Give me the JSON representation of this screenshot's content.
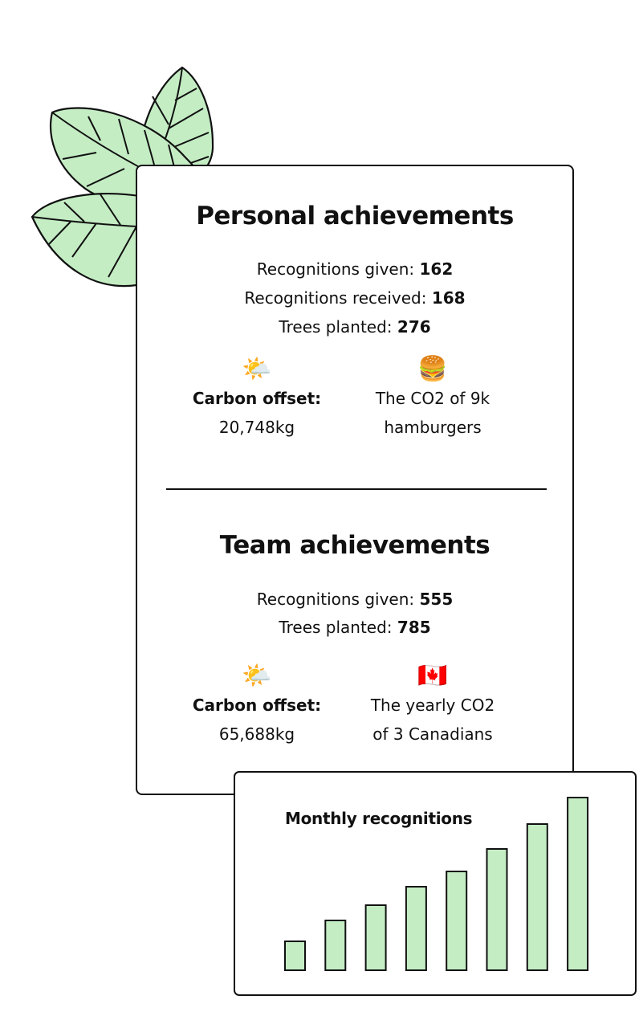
{
  "colors": {
    "leaf_fill": "#c4edc4",
    "bar_fill": "#c4edc4",
    "outline": "#111111",
    "background": "#ffffff"
  },
  "personal": {
    "title": "Personal achievements",
    "stats": [
      {
        "label": "Recognitions given: ",
        "value": "162"
      },
      {
        "label": "Recognitions received: ",
        "value": "168"
      },
      {
        "label": "Trees planted: ",
        "value": "276"
      }
    ],
    "carbon": {
      "icon": "sun-behind-cloud-icon",
      "emoji": "🌤️",
      "label": "Carbon offset:",
      "value": "20,748kg"
    },
    "equivalent": {
      "icon": "hamburger-icon",
      "emoji": "🍔",
      "line1": "The CO2 of 9k",
      "line2": "hamburgers"
    }
  },
  "team": {
    "title": "Team achievements",
    "stats": [
      {
        "label": "Recognitions given: ",
        "value": "555"
      },
      {
        "label": "Trees planted: ",
        "value": "785"
      }
    ],
    "carbon": {
      "icon": "sun-behind-cloud-icon",
      "emoji": "🌤️",
      "label": "Carbon offset:",
      "value": "65,688kg"
    },
    "equivalent": {
      "icon": "canada-flag-icon",
      "emoji": "🇨🇦",
      "line1": "The yearly CO2",
      "line2": "of 3 Canadians"
    }
  },
  "chart_data": {
    "type": "bar",
    "title": "Monthly recognitions",
    "xlabel": "",
    "ylabel": "",
    "categories": [
      "",
      "",
      "",
      "",
      "",
      "",
      "",
      ""
    ],
    "values": [
      36,
      62,
      81,
      104,
      123,
      151,
      182,
      215
    ],
    "ylim": [
      0,
      215
    ],
    "grid": false,
    "legend": "none"
  }
}
